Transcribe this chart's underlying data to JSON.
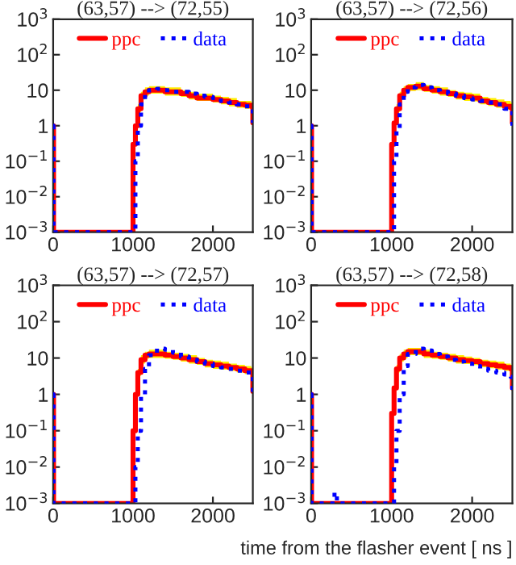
{
  "chart_data": [
    {
      "type": "step",
      "title": "(63,57) --> (72,55)",
      "log": "y",
      "xlim": [
        0,
        2500
      ],
      "xticks": [
        0,
        1000,
        2000
      ],
      "ylim": [
        0.001,
        1000
      ],
      "yticks": [
        {
          "value": 0.001,
          "label": "10$^{−3}$"
        },
        {
          "value": 0.01,
          "label": "10$^{−2}$"
        },
        {
          "value": 0.1,
          "label": "10$^{−1}$"
        },
        {
          "value": 1,
          "label": "1"
        },
        {
          "value": 10,
          "label": "10"
        },
        {
          "value": 100,
          "label": "10$^{2}$"
        },
        {
          "value": 1000,
          "label": "10$^{3}$"
        }
      ],
      "legend": "top",
      "grid": false,
      "x": [
        0,
        5,
        995,
        1000,
        1030,
        1060,
        1100,
        1150,
        1200,
        1300,
        1400,
        1500,
        1600,
        1700,
        1800,
        1900,
        2000,
        2100,
        2200,
        2300,
        2400,
        2480,
        2500
      ],
      "series": [
        {
          "name": "ppc",
          "color": "#ff0000",
          "line_style": "solid",
          "values": [
            1,
            0.001,
            0.001,
            0.3,
            1,
            3,
            7,
            9,
            10,
            10,
            9,
            9,
            8,
            7,
            6,
            6,
            5.5,
            5,
            4.5,
            4,
            3.8,
            3.5,
            1.2
          ],
          "upper": [
            null,
            null,
            null,
            null,
            null,
            4,
            9,
            12,
            13,
            13,
            12,
            12,
            10,
            9,
            8,
            8,
            7,
            6.5,
            6,
            5,
            5,
            4.5,
            1.5
          ],
          "lower": [
            null,
            null,
            null,
            null,
            null,
            2.4,
            5.5,
            7,
            8,
            8,
            7,
            7,
            6.5,
            5.5,
            5,
            5,
            4.5,
            4,
            3.5,
            3.2,
            3,
            2.8,
            1
          ]
        },
        {
          "name": "data",
          "color": "#0000ff",
          "line_style": "dotted",
          "values": [
            1,
            0.001,
            0.001,
            0.001,
            0.1,
            1,
            4,
            8,
            10,
            11,
            10,
            9,
            9,
            8,
            7,
            6.5,
            6,
            5,
            4.5,
            4,
            3.5,
            3.5,
            1.2
          ]
        }
      ]
    },
    {
      "type": "step",
      "title": "(63,57) --> (72,56)",
      "log": "y",
      "xlim": [
        0,
        2500
      ],
      "xticks": [
        0,
        1000,
        2000
      ],
      "ylim": [
        0.001,
        1000
      ],
      "yticks": [
        {
          "value": 0.001,
          "label": "10$^{−3}$"
        },
        {
          "value": 0.01,
          "label": "10$^{−2}$"
        },
        {
          "value": 0.1,
          "label": "10$^{−1}$"
        },
        {
          "value": 1,
          "label": "1"
        },
        {
          "value": 10,
          "label": "10"
        },
        {
          "value": 100,
          "label": "10$^{2}$"
        },
        {
          "value": 1000,
          "label": "10$^{3}$"
        }
      ],
      "legend": "top",
      "grid": false,
      "x": [
        0,
        5,
        995,
        1000,
        1030,
        1060,
        1100,
        1150,
        1200,
        1300,
        1400,
        1500,
        1600,
        1700,
        1800,
        1900,
        2000,
        2100,
        2200,
        2300,
        2400,
        2480,
        2500
      ],
      "series": [
        {
          "name": "ppc",
          "color": "#ff0000",
          "line_style": "solid",
          "values": [
            1,
            0.001,
            0.001,
            0.3,
            1.2,
            3,
            7,
            10,
            12,
            13,
            11,
            10,
            9,
            8,
            7,
            6.5,
            6,
            5,
            4.5,
            4,
            3.5,
            3.2,
            1.2
          ],
          "upper": [
            null,
            null,
            null,
            null,
            null,
            4,
            9,
            13,
            15,
            17,
            14,
            13,
            12,
            10,
            9,
            8.5,
            8,
            6.5,
            6,
            5.5,
            5,
            4.5,
            1.5
          ],
          "lower": [
            null,
            null,
            null,
            null,
            null,
            2.4,
            5.5,
            8,
            9.5,
            10,
            9,
            8,
            7,
            6.5,
            5.5,
            5,
            4.8,
            4,
            3.6,
            3.2,
            2.8,
            2.5,
            1
          ]
        },
        {
          "name": "data",
          "color": "#0000ff",
          "line_style": "dotted",
          "values": [
            1,
            0.001,
            0.001,
            0.001,
            0.1,
            0.8,
            4,
            9,
            12,
            14,
            12,
            10,
            9,
            8,
            7,
            6,
            5.5,
            5,
            4.5,
            4,
            3,
            2.8,
            1.0
          ]
        }
      ]
    },
    {
      "type": "step",
      "title": "(63,57) --> (72,57)",
      "log": "y",
      "xlim": [
        0,
        2500
      ],
      "xticks": [
        0,
        1000,
        2000
      ],
      "ylim": [
        0.001,
        1000
      ],
      "yticks": [
        {
          "value": 0.001,
          "label": "10$^{−3}$"
        },
        {
          "value": 0.01,
          "label": "10$^{−2}$"
        },
        {
          "value": 0.1,
          "label": "10$^{−1}$"
        },
        {
          "value": 1,
          "label": "1"
        },
        {
          "value": 10,
          "label": "10"
        },
        {
          "value": 100,
          "label": "10$^{2}$"
        },
        {
          "value": 1000,
          "label": "10$^{3}$"
        }
      ],
      "legend": "top",
      "grid": false,
      "x": [
        0,
        5,
        995,
        1000,
        1030,
        1060,
        1100,
        1150,
        1200,
        1300,
        1400,
        1500,
        1600,
        1700,
        1800,
        1900,
        2000,
        2100,
        2200,
        2300,
        2400,
        2480,
        2500
      ],
      "series": [
        {
          "name": "ppc",
          "color": "#ff0000",
          "line_style": "solid",
          "values": [
            1,
            0.001,
            0.001,
            0.1,
            1,
            4,
            9,
            12,
            13,
            13,
            12,
            11,
            10,
            9,
            8,
            7,
            6.5,
            6,
            5.5,
            5,
            4.5,
            4,
            1.2
          ],
          "upper": [
            null,
            null,
            null,
            null,
            null,
            5,
            12,
            15,
            17,
            17,
            15,
            14,
            13,
            12,
            10,
            9,
            8.5,
            8,
            7,
            6.5,
            6,
            5.5,
            1.5
          ],
          "lower": [
            null,
            null,
            null,
            null,
            null,
            3.2,
            7,
            9.5,
            10,
            10,
            9.5,
            9,
            8,
            7,
            6.5,
            5.5,
            5,
            4.8,
            4.4,
            4,
            3.6,
            3.2,
            1
          ]
        },
        {
          "name": "data",
          "color": "#0000ff",
          "line_style": "dotted",
          "values": [
            1,
            0.001,
            0.001,
            0.001,
            0.01,
            0.1,
            1,
            5,
            12,
            18,
            17,
            14,
            11,
            9,
            8,
            7,
            6,
            5.5,
            5,
            4.5,
            4,
            3.5,
            1.0
          ]
        }
      ]
    },
    {
      "type": "step",
      "title": "(63,57) --> (72,58)",
      "xlabel": "time from the flasher event [ ns ]",
      "log": "y",
      "xlim": [
        0,
        2500
      ],
      "xticks": [
        0,
        1000,
        2000
      ],
      "ylim": [
        0.001,
        1000
      ],
      "yticks": [
        {
          "value": 0.001,
          "label": "10$^{−3}$"
        },
        {
          "value": 0.01,
          "label": "10$^{−2}$"
        },
        {
          "value": 0.1,
          "label": "10$^{−1}$"
        },
        {
          "value": 1,
          "label": "1"
        },
        {
          "value": 10,
          "label": "10"
        },
        {
          "value": 100,
          "label": "10$^{2}$"
        },
        {
          "value": 1000,
          "label": "10$^{3}$"
        }
      ],
      "legend": "top",
      "grid": false,
      "x": [
        0,
        5,
        995,
        1000,
        1030,
        1060,
        1100,
        1150,
        1200,
        1300,
        1400,
        1500,
        1600,
        1700,
        1800,
        1900,
        2000,
        2100,
        2200,
        2300,
        2400,
        2480,
        2500
      ],
      "series": [
        {
          "name": "ppc",
          "color": "#ff0000",
          "line_style": "solid",
          "values": [
            1,
            0.001,
            0.001,
            0.3,
            1.5,
            5,
            10,
            13,
            15,
            15,
            13,
            12,
            11,
            10,
            9,
            8.5,
            8,
            7,
            6.5,
            6,
            5.5,
            5,
            1.5
          ],
          "upper": [
            null,
            null,
            null,
            null,
            null,
            6.5,
            13,
            17,
            19,
            19,
            17,
            15,
            14,
            13,
            12,
            11,
            10,
            9,
            8.5,
            8,
            7,
            6.5,
            2
          ],
          "lower": [
            null,
            null,
            null,
            null,
            null,
            4,
            8,
            10,
            12,
            12,
            10,
            9.5,
            9,
            8,
            7,
            6.8,
            6.4,
            5.6,
            5.2,
            4.8,
            4.4,
            4,
            1.2
          ]
        },
        {
          "name": "data",
          "color": "#0000ff",
          "line_style": "dotted",
          "x": [
            0,
            5,
            280,
            290,
            310,
            320,
            1000,
            1030,
            1060,
            1100,
            1150,
            1200,
            1300,
            1400,
            1500,
            1600,
            1700,
            1800,
            1900,
            2000,
            2100,
            2200,
            2300,
            2400,
            2480,
            2500
          ],
          "values": [
            1,
            0.001,
            0.001,
            0.002,
            0.002,
            0.001,
            0.001,
            0.01,
            0.1,
            1,
            6,
            13,
            18,
            16,
            13,
            11,
            9,
            8,
            7,
            6,
            5,
            4.5,
            4,
            3.5,
            3,
            1.0
          ]
        }
      ]
    }
  ]
}
